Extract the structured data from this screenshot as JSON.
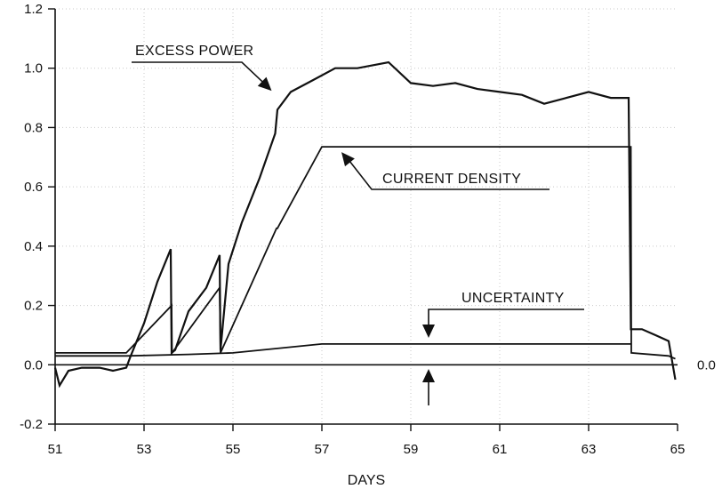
{
  "chart_data": {
    "type": "line",
    "title": "",
    "xlabel": "DAYS",
    "ylabel": "",
    "xlim": [
      51,
      65
    ],
    "ylim": [
      -0.2,
      1.2
    ],
    "x_ticks": [
      "51",
      "53",
      "55",
      "57",
      "59",
      "61",
      "63",
      "65"
    ],
    "y_ticks": [
      "-0.2",
      "0.0",
      "0.2",
      "0.4",
      "0.6",
      "0.8",
      "1.0",
      "1.2"
    ],
    "right_label": "0.0",
    "grid": true,
    "series": [
      {
        "name": "EXCESS POWER",
        "x": [
          51.0,
          51.1,
          51.3,
          51.6,
          52.0,
          52.3,
          52.6,
          52.7,
          53.0,
          53.3,
          53.6,
          53.62,
          53.7,
          54.0,
          54.4,
          54.7,
          54.72,
          54.9,
          55.2,
          55.6,
          55.95,
          56.0,
          56.3,
          56.8,
          57.3,
          57.8,
          58.5,
          59.0,
          59.5,
          60.0,
          60.5,
          61.0,
          61.5,
          62.0,
          62.5,
          63.0,
          63.5,
          63.9,
          63.95,
          64.2,
          64.5,
          64.8,
          64.95
        ],
        "values": [
          -0.01,
          -0.07,
          -0.02,
          -0.01,
          -0.01,
          -0.02,
          -0.01,
          0.03,
          0.14,
          0.28,
          0.39,
          0.04,
          0.05,
          0.18,
          0.26,
          0.37,
          0.05,
          0.34,
          0.48,
          0.63,
          0.78,
          0.86,
          0.92,
          0.96,
          1.0,
          1.0,
          1.02,
          0.95,
          0.94,
          0.95,
          0.93,
          0.92,
          0.91,
          0.88,
          0.9,
          0.92,
          0.9,
          0.9,
          0.12,
          0.12,
          0.1,
          0.08,
          -0.05
        ]
      },
      {
        "name": "CURRENT DENSITY",
        "x": [
          51.0,
          52.6,
          53.62,
          53.63,
          54.7,
          54.72,
          55.98,
          56.0,
          57.0,
          63.95,
          63.96,
          64.8,
          64.95
        ],
        "values": [
          0.04,
          0.04,
          0.2,
          0.04,
          0.26,
          0.04,
          0.46,
          0.46,
          0.735,
          0.735,
          0.04,
          0.03,
          0.02
        ]
      },
      {
        "name": "UNCERTAINTY",
        "x": [
          51.0,
          52.6,
          54.0,
          55.0,
          56.0,
          57.0,
          59.0,
          61.0,
          63.0,
          63.95
        ],
        "values": [
          0.03,
          0.03,
          0.035,
          0.04,
          0.055,
          0.07,
          0.07,
          0.07,
          0.07,
          0.07
        ]
      }
    ],
    "annotations": [
      {
        "text": "EXCESS POWER",
        "target_x": 55.95,
        "target_y": 0.9
      },
      {
        "text": "CURRENT DENSITY",
        "target_x": 57.4,
        "target_y": 0.735
      },
      {
        "text": "UNCERTAINTY",
        "target_x": 59.4,
        "target_y": 0.09
      }
    ]
  }
}
